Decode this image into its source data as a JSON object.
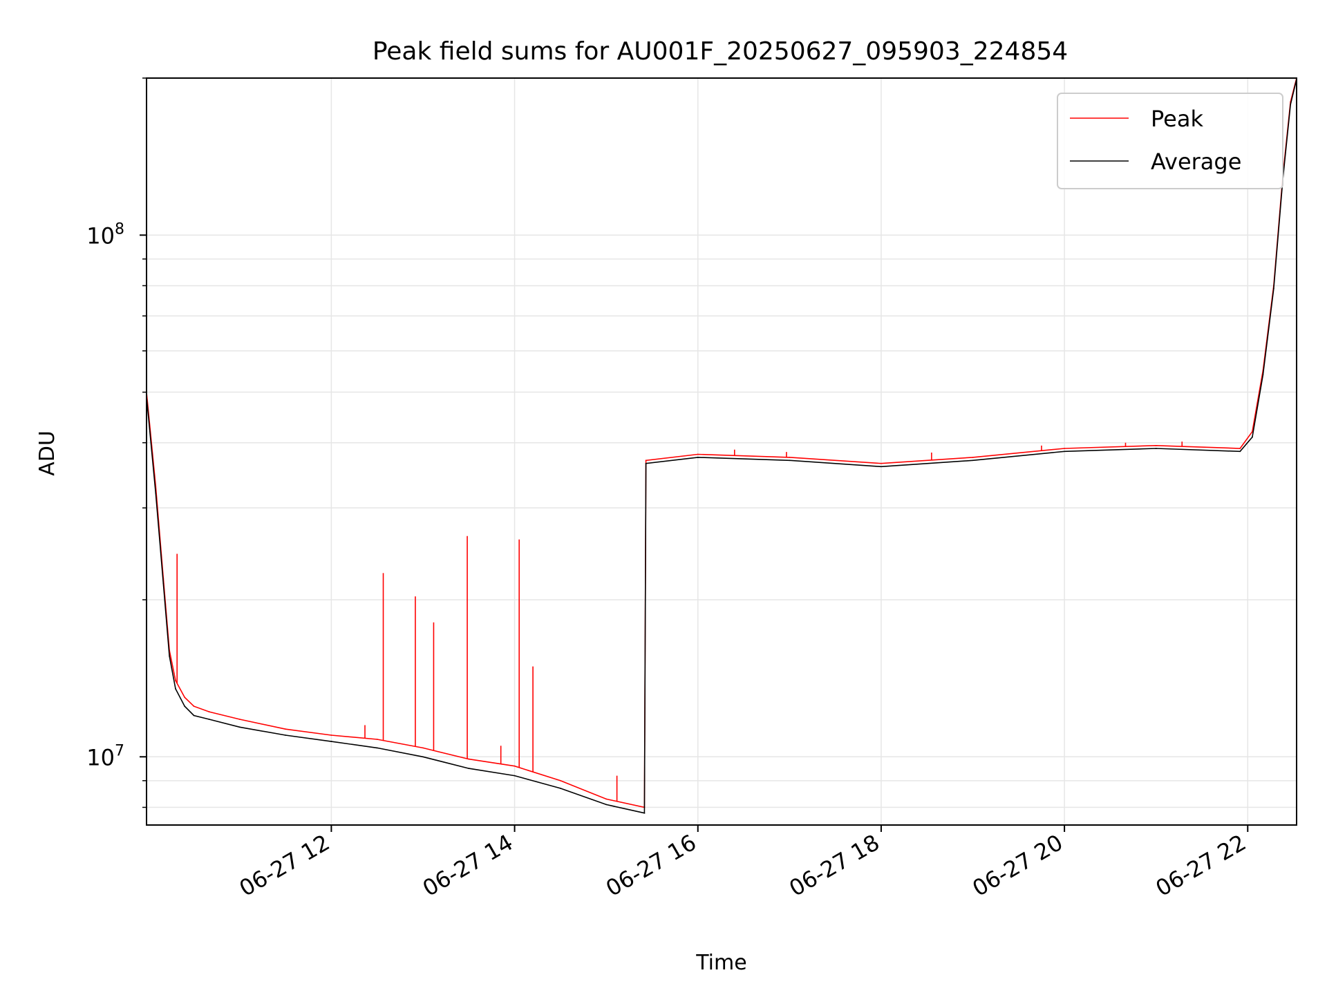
{
  "chart_data": {
    "type": "line",
    "title": "Peak field sums for AU001F_20250627_095903_224854",
    "xlabel": "Time",
    "ylabel": "ADU",
    "yscale": "log",
    "grid": true,
    "legend_position": "top-right",
    "xlim": [
      "2025-06-27 09:59",
      "2025-06-27 22:32"
    ],
    "ylim": [
      7400000,
      200000000
    ],
    "x_ticks": [
      "06-27 12",
      "06-27 14",
      "06-27 16",
      "06-27 18",
      "06-27 20",
      "06-27 22"
    ],
    "y_ticks": [
      {
        "base": "10",
        "exp": "7",
        "value": 10000000
      },
      {
        "base": "10",
        "exp": "8",
        "value": 100000000
      }
    ],
    "series": [
      {
        "name": "Peak",
        "color": "#ff0000",
        "x": [
          "2025-06-27 09:59",
          "2025-06-27 10:05",
          "2025-06-27 10:10",
          "2025-06-27 10:14",
          "2025-06-27 10:18",
          "2025-06-27 10:24",
          "2025-06-27 10:30",
          "2025-06-27 10:40",
          "2025-06-27 11:00",
          "2025-06-27 11:30",
          "2025-06-27 12:00",
          "2025-06-27 12:30",
          "2025-06-27 13:00",
          "2025-06-27 13:30",
          "2025-06-27 14:00",
          "2025-06-27 14:30",
          "2025-06-27 15:00",
          "2025-06-27 15:25",
          "2025-06-27 15:26",
          "2025-06-27 16:00",
          "2025-06-27 17:00",
          "2025-06-27 18:00",
          "2025-06-27 19:00",
          "2025-06-27 20:00",
          "2025-06-27 21:00",
          "2025-06-27 21:55",
          "2025-06-27 22:03",
          "2025-06-27 22:10",
          "2025-06-27 22:17",
          "2025-06-27 22:23",
          "2025-06-27 22:28",
          "2025-06-27 22:32"
        ],
        "values": [
          50000000,
          33000000,
          22000000,
          16000000,
          14000000,
          13000000,
          12500000,
          12200000,
          11800000,
          11300000,
          11000000,
          10800000,
          10400000,
          9900000,
          9600000,
          9000000,
          8300000,
          8000000,
          37000000,
          38000000,
          37500000,
          36500000,
          37500000,
          39000000,
          39500000,
          39000000,
          42000000,
          55000000,
          80000000,
          130000000,
          180000000,
          200000000
        ],
        "spikes": [
          {
            "x": "2025-06-27 10:19",
            "y": 24500000
          },
          {
            "x": "2025-06-27 12:22",
            "y": 11500000
          },
          {
            "x": "2025-06-27 12:34",
            "y": 22500000
          },
          {
            "x": "2025-06-27 12:55",
            "y": 20300000
          },
          {
            "x": "2025-06-27 13:07",
            "y": 18100000
          },
          {
            "x": "2025-06-27 13:29",
            "y": 26500000
          },
          {
            "x": "2025-06-27 13:51",
            "y": 10500000
          },
          {
            "x": "2025-06-27 14:03",
            "y": 26100000
          },
          {
            "x": "2025-06-27 14:12",
            "y": 14900000
          },
          {
            "x": "2025-06-27 15:07",
            "y": 9200000
          },
          {
            "x": "2025-06-27 16:24",
            "y": 38800000
          },
          {
            "x": "2025-06-27 16:58",
            "y": 38400000
          },
          {
            "x": "2025-06-27 18:33",
            "y": 38300000
          },
          {
            "x": "2025-06-27 19:45",
            "y": 39500000
          },
          {
            "x": "2025-06-27 20:40",
            "y": 40000000
          },
          {
            "x": "2025-06-27 21:17",
            "y": 40200000
          }
        ]
      },
      {
        "name": "Average",
        "color": "#000000",
        "x": [
          "2025-06-27 09:59",
          "2025-06-27 10:05",
          "2025-06-27 10:10",
          "2025-06-27 10:14",
          "2025-06-27 10:18",
          "2025-06-27 10:24",
          "2025-06-27 10:30",
          "2025-06-27 10:40",
          "2025-06-27 11:00",
          "2025-06-27 11:30",
          "2025-06-27 12:00",
          "2025-06-27 12:30",
          "2025-06-27 13:00",
          "2025-06-27 13:30",
          "2025-06-27 14:00",
          "2025-06-27 14:30",
          "2025-06-27 15:00",
          "2025-06-27 15:25",
          "2025-06-27 15:26",
          "2025-06-27 16:00",
          "2025-06-27 17:00",
          "2025-06-27 18:00",
          "2025-06-27 19:00",
          "2025-06-27 20:00",
          "2025-06-27 21:00",
          "2025-06-27 21:55",
          "2025-06-27 22:03",
          "2025-06-27 22:10",
          "2025-06-27 22:17",
          "2025-06-27 22:23",
          "2025-06-27 22:28",
          "2025-06-27 22:32"
        ],
        "values": [
          49000000,
          32000000,
          21500000,
          15600000,
          13500000,
          12500000,
          12000000,
          11800000,
          11400000,
          11000000,
          10700000,
          10400000,
          10000000,
          9500000,
          9200000,
          8700000,
          8100000,
          7800000,
          36500000,
          37500000,
          37000000,
          36000000,
          37000000,
          38500000,
          39000000,
          38500000,
          41000000,
          54000000,
          79000000,
          128000000,
          178000000,
          199000000
        ]
      }
    ]
  }
}
